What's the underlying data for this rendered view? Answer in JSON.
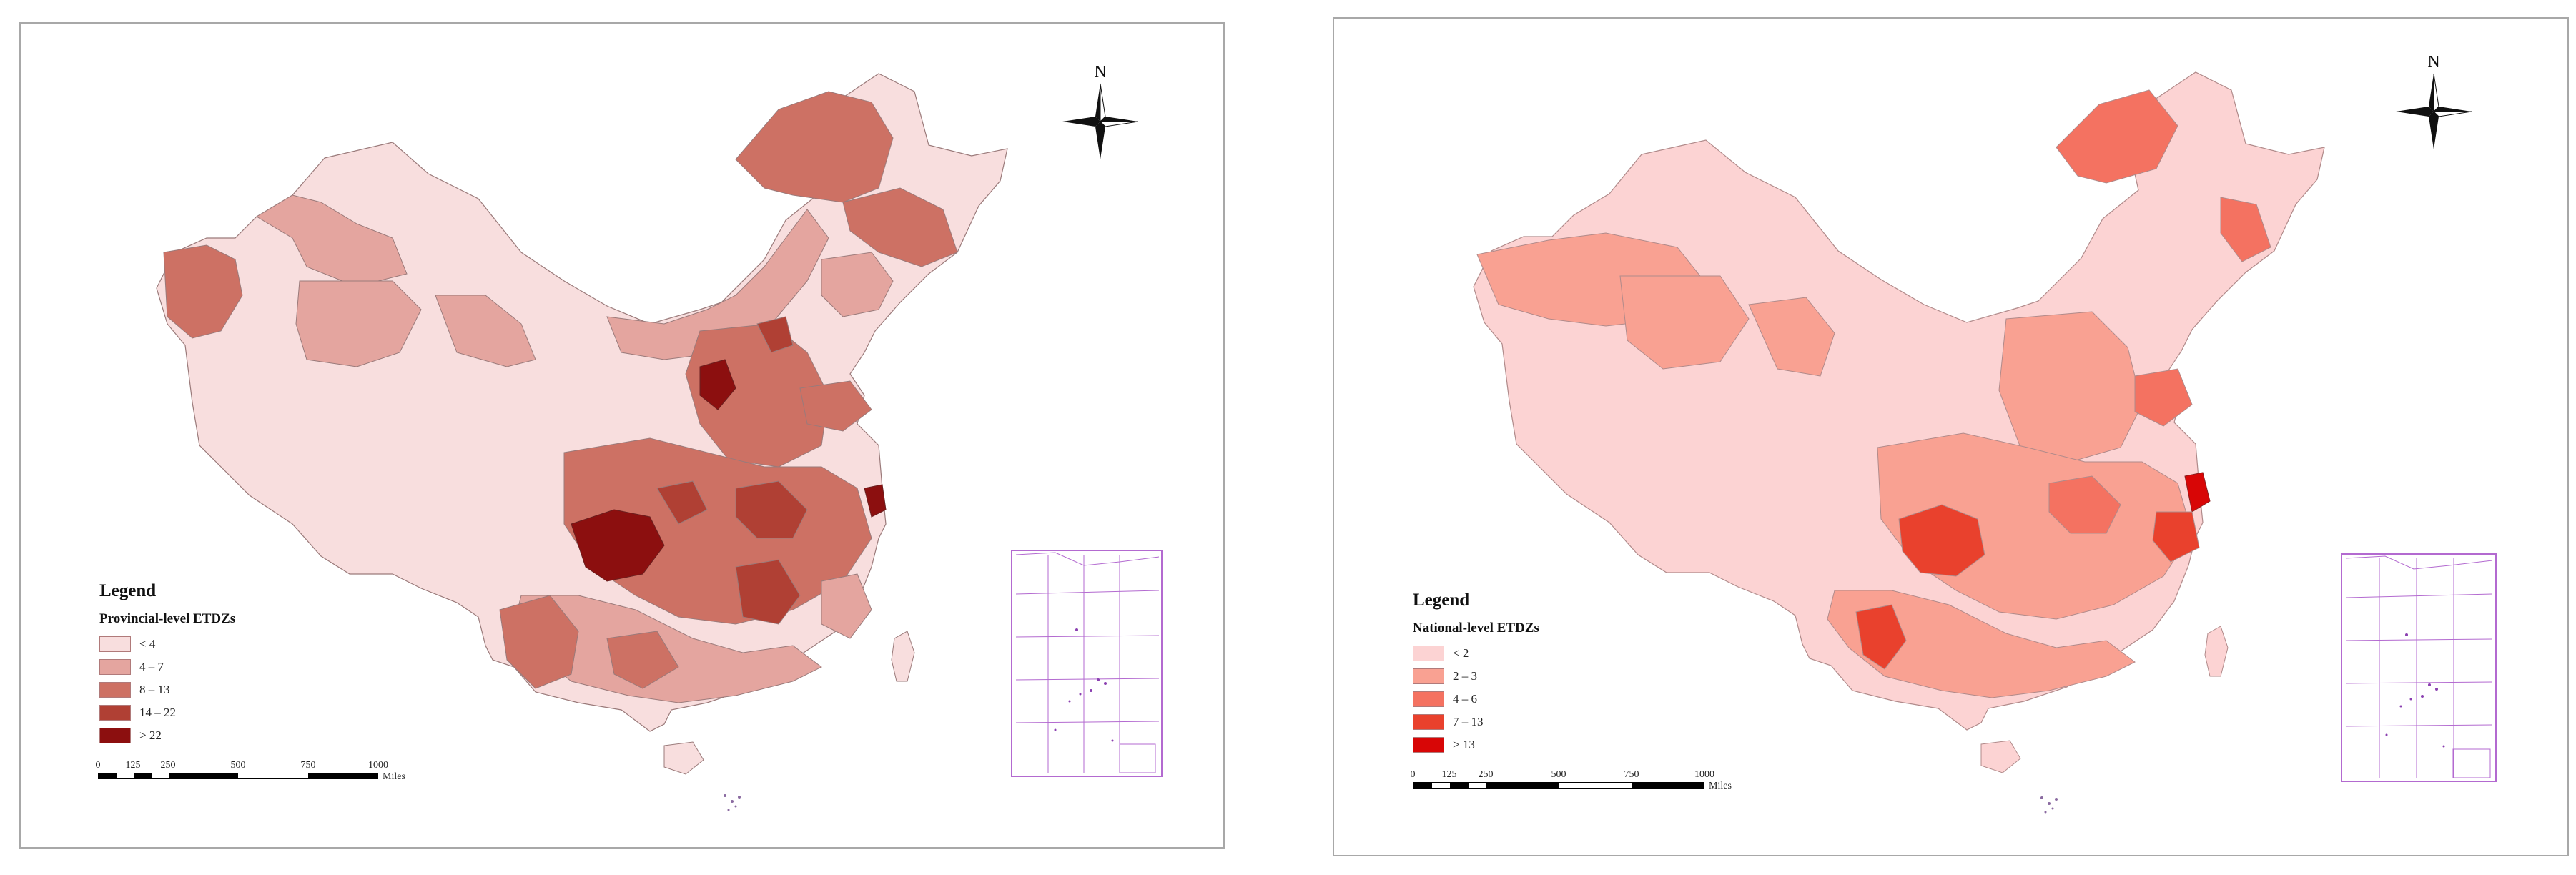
{
  "panels": [
    {
      "legend_title": "Legend",
      "legend_subtitle": "Provincial-level ETDZs",
      "legend_items": [
        {
          "label": "< 4",
          "color": "#f8dede"
        },
        {
          "label": "4 – 7",
          "color": "#e4a59f"
        },
        {
          "label": "8 – 13",
          "color": "#cd7164"
        },
        {
          "label": "14 – 22",
          "color": "#b04034"
        },
        {
          "label": "> 22",
          "color": "#8c0f0f"
        }
      ],
      "scale_ticks": [
        "0",
        "125",
        "250",
        "500",
        "750",
        "1000"
      ],
      "scale_units": "Miles",
      "north_label": "N"
    },
    {
      "legend_title": "Legend",
      "legend_subtitle": "National-level ETDZs",
      "legend_items": [
        {
          "label": "< 2",
          "color": "#fcd3d3"
        },
        {
          "label": "2 – 3",
          "color": "#f9a192"
        },
        {
          "label": "4 – 6",
          "color": "#f47261"
        },
        {
          "label": "7 – 13",
          "color": "#e9412d"
        },
        {
          "label": "> 13",
          "color": "#d80606"
        }
      ],
      "scale_ticks": [
        "0",
        "125",
        "250",
        "500",
        "750",
        "1000"
      ],
      "scale_units": "Miles",
      "north_label": "N"
    }
  ]
}
